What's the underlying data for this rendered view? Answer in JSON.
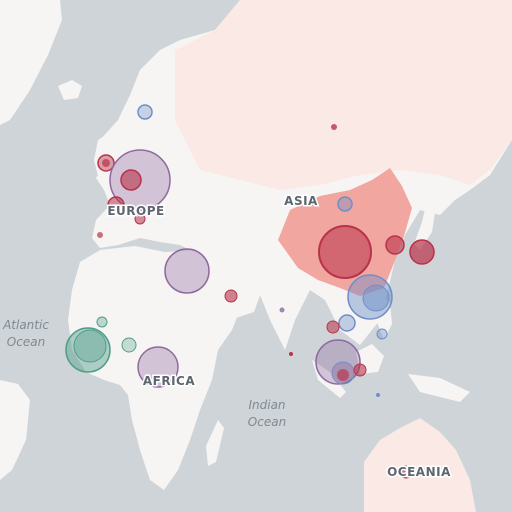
{
  "labels": {
    "europe": "EUROPE",
    "asia": "ASIA",
    "africa": "AFRICA",
    "oceania": "OCEANIA",
    "atlantic_line1": "Atlantic",
    "atlantic_line2": "Ocean",
    "indian_line1": "Indian",
    "indian_line2": "Ocean"
  },
  "colors": {
    "water": "#cfd4d8",
    "land": "#f6f5f3",
    "highlight_land": "#fbe9e5",
    "china": "#f2a6a0",
    "purple": "#8e6aa0",
    "red": "#b8334a",
    "blue": "#6f8fc8",
    "teal": "#4f9e8a"
  },
  "markers": [
    {
      "name": "uk-marker",
      "color": "red"
    },
    {
      "name": "france-marker",
      "color": "red"
    },
    {
      "name": "germany-marker",
      "color": "purple"
    },
    {
      "name": "germany-inner-marker",
      "color": "red"
    },
    {
      "name": "sweden-marker",
      "color": "blue"
    },
    {
      "name": "libya-marker",
      "color": "purple"
    },
    {
      "name": "west-africa-marker",
      "color": "teal"
    },
    {
      "name": "central-africa-marker",
      "color": "purple"
    },
    {
      "name": "china-marker",
      "color": "red"
    },
    {
      "name": "japan-marker",
      "color": "red"
    },
    {
      "name": "korea-marker",
      "color": "red"
    },
    {
      "name": "southeast-asia-marker",
      "color": "blue"
    },
    {
      "name": "indonesia-marker",
      "color": "purple"
    },
    {
      "name": "australia-marker",
      "color": "red"
    }
  ]
}
